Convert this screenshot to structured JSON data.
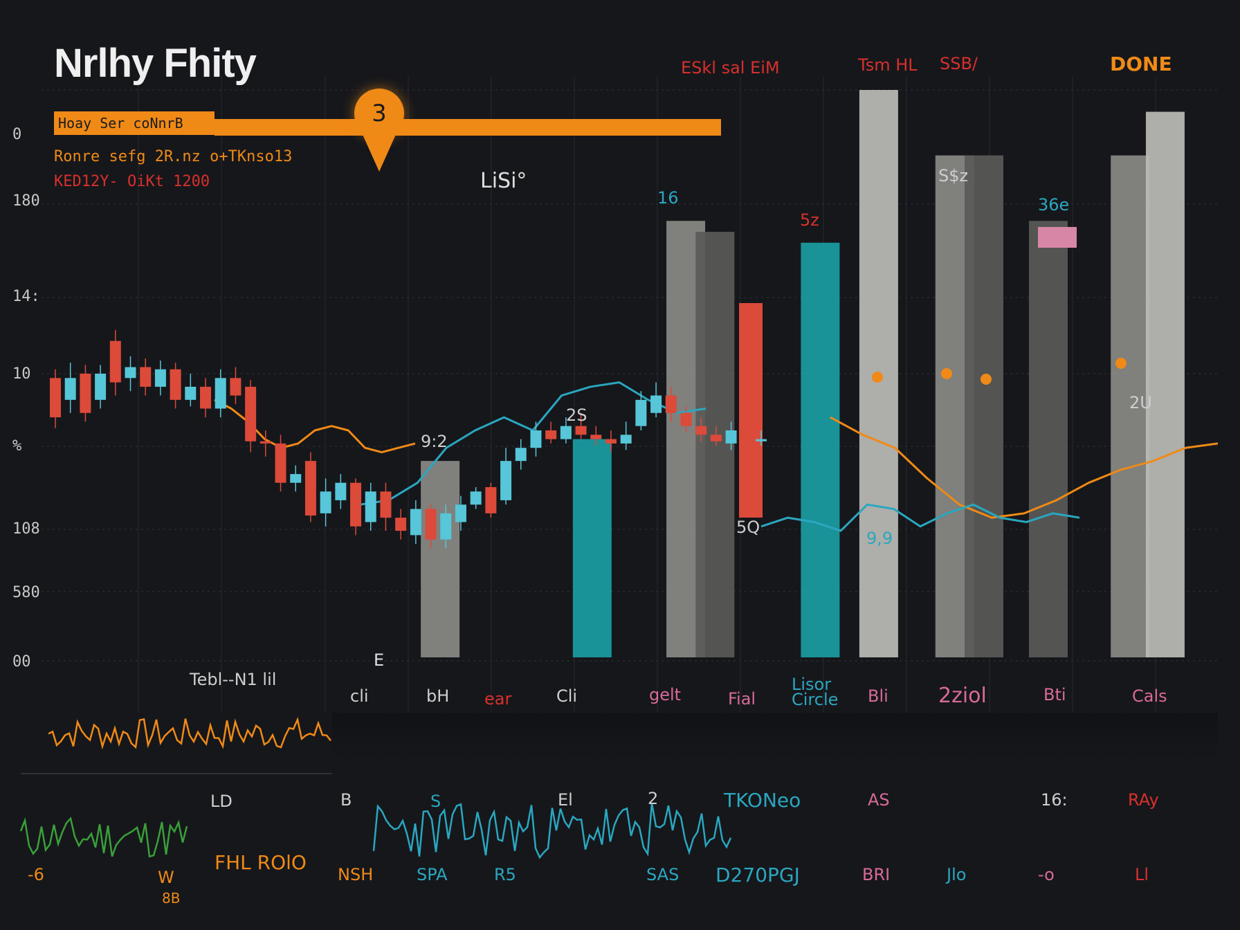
{
  "title": "Nrlhy Fhity",
  "banner": {
    "label": "Hoay Ser coNnrB",
    "pin_number": "3"
  },
  "subtitles": [
    "Ronre sefg  2R.nz o+TKnso13",
    "KED12Y- OiKt  1200"
  ],
  "y_axis_labels": [
    "0",
    "180",
    "14:",
    "10",
    "%",
    "108",
    "580",
    "00"
  ],
  "x_axis_labels": [
    "Tebl--N1 lil",
    "cli",
    "bH",
    "ear",
    "Cli",
    "gelt",
    "Fial",
    "Lisor\nCircle",
    "Bli",
    "2ziol",
    "Bti",
    "Cals"
  ],
  "annotations": [
    {
      "text": "LiSi°",
      "color": "#e0e0e0"
    },
    {
      "text": "ESkl sal  EiM",
      "color": "#d8302c"
    },
    {
      "text": "Tsm HL",
      "color": "#d8302c"
    },
    {
      "text": "SSB/",
      "color": "#d8302c"
    },
    {
      "text": "DONE",
      "color": "#f08a17"
    },
    {
      "text": "16",
      "color": "#2aa7c0"
    },
    {
      "text": "S$z",
      "color": "#cfcfcf"
    },
    {
      "text": "36e",
      "color": "#2aa7c0"
    },
    {
      "text": "5z",
      "color": "#d8302c"
    },
    {
      "text": "9:2",
      "color": "#cfcfcf"
    },
    {
      "text": "2S",
      "color": "#cfcfcf"
    },
    {
      "text": "5Q",
      "color": "#cfcfcf"
    },
    {
      "text": "9,9",
      "color": "#2aa7c0"
    },
    {
      "text": "2U",
      "color": "#cfcfcf"
    },
    {
      "text": "E",
      "color": "#e0e0e0"
    }
  ],
  "lower_labels": [
    "LD",
    "B",
    "S",
    "El",
    "2",
    "TKONeo",
    "AS",
    "16:",
    "RAy"
  ],
  "footer_labels": [
    {
      "text": "-6",
      "color": "#f08a17"
    },
    {
      "text": "W",
      "color": "#f08a17"
    },
    {
      "text": "8B",
      "color": "#f08a17"
    },
    {
      "text": "FHL  ROlO",
      "color": "#f08a17"
    },
    {
      "text": "NSH",
      "color": "#f08a17"
    },
    {
      "text": "SPA",
      "color": "#2aa7c0"
    },
    {
      "text": "R5",
      "color": "#2aa7c0"
    },
    {
      "text": "SAS",
      "color": "#2aa7c0"
    },
    {
      "text": "D270PGJ",
      "color": "#2aa7c0"
    },
    {
      "text": "BRI",
      "color": "#d86a9a"
    },
    {
      "text": "Jlo",
      "color": "#2aa7c0"
    },
    {
      "text": "-o",
      "color": "#d86a9a"
    },
    {
      "text": "Ll",
      "color": "#d8302c"
    }
  ],
  "colors": {
    "background": "#16171b",
    "up": "#56c6d8",
    "down": "#dc4a3a",
    "teal_bar": "#1a9ea3",
    "gray_bar": "#8a8a86",
    "light_bar": "#bcbcb6",
    "orange": "#f08a17",
    "cyan_line": "#2aa7c0",
    "green_line": "#3aa03a"
  },
  "chart_data": {
    "type": "bar",
    "title": "",
    "candles": [
      {
        "o": 128,
        "c": 110,
        "h": 132,
        "l": 105
      },
      {
        "o": 118,
        "c": 128,
        "h": 135,
        "l": 112
      },
      {
        "o": 130,
        "c": 112,
        "h": 134,
        "l": 108
      },
      {
        "o": 118,
        "c": 130,
        "h": 134,
        "l": 114
      },
      {
        "o": 145,
        "c": 126,
        "h": 150,
        "l": 120
      },
      {
        "o": 128,
        "c": 133,
        "h": 138,
        "l": 122
      },
      {
        "o": 133,
        "c": 124,
        "h": 137,
        "l": 120
      },
      {
        "o": 124,
        "c": 132,
        "h": 136,
        "l": 120
      },
      {
        "o": 132,
        "c": 118,
        "h": 135,
        "l": 114
      },
      {
        "o": 118,
        "c": 124,
        "h": 130,
        "l": 115
      },
      {
        "o": 124,
        "c": 114,
        "h": 128,
        "l": 110
      },
      {
        "o": 114,
        "c": 128,
        "h": 132,
        "l": 110
      },
      {
        "o": 128,
        "c": 120,
        "h": 133,
        "l": 116
      },
      {
        "o": 124,
        "c": 99,
        "h": 127,
        "l": 94
      },
      {
        "o": 99,
        "c": 98,
        "h": 104,
        "l": 92
      },
      {
        "o": 98,
        "c": 80,
        "h": 102,
        "l": 76
      },
      {
        "o": 80,
        "c": 84,
        "h": 88,
        "l": 76
      },
      {
        "o": 90,
        "c": 65,
        "h": 94,
        "l": 62
      },
      {
        "o": 66,
        "c": 76,
        "h": 82,
        "l": 60
      },
      {
        "o": 72,
        "c": 80,
        "h": 84,
        "l": 68
      },
      {
        "o": 80,
        "c": 60,
        "h": 82,
        "l": 56
      },
      {
        "o": 62,
        "c": 76,
        "h": 80,
        "l": 58
      },
      {
        "o": 76,
        "c": 64,
        "h": 80,
        "l": 58
      },
      {
        "o": 64,
        "c": 58,
        "h": 68,
        "l": 54
      },
      {
        "o": 56,
        "c": 68,
        "h": 72,
        "l": 52
      },
      {
        "o": 68,
        "c": 54,
        "h": 70,
        "l": 50
      },
      {
        "o": 54,
        "c": 66,
        "h": 70,
        "l": 50
      },
      {
        "o": 62,
        "c": 70,
        "h": 74,
        "l": 58
      },
      {
        "o": 70,
        "c": 76,
        "h": 78,
        "l": 68
      },
      {
        "o": 78,
        "c": 66,
        "h": 80,
        "l": 64
      },
      {
        "o": 72,
        "c": 90,
        "h": 96,
        "l": 70
      },
      {
        "o": 90,
        "c": 96,
        "h": 100,
        "l": 86
      },
      {
        "o": 96,
        "c": 104,
        "h": 108,
        "l": 92
      },
      {
        "o": 104,
        "c": 100,
        "h": 108,
        "l": 98
      },
      {
        "o": 100,
        "c": 106,
        "h": 110,
        "l": 98
      },
      {
        "o": 106,
        "c": 102,
        "h": 112,
        "l": 100
      },
      {
        "o": 102,
        "c": 100,
        "h": 106,
        "l": 97
      },
      {
        "o": 100,
        "c": 98,
        "h": 104,
        "l": 94
      },
      {
        "o": 98,
        "c": 102,
        "h": 108,
        "l": 95
      },
      {
        "o": 106,
        "c": 118,
        "h": 122,
        "l": 104
      },
      {
        "o": 112,
        "c": 120,
        "h": 126,
        "l": 110
      },
      {
        "o": 120,
        "c": 112,
        "h": 124,
        "l": 108
      },
      {
        "o": 112,
        "c": 106,
        "h": 115,
        "l": 103
      },
      {
        "o": 106,
        "c": 102,
        "h": 110,
        "l": 99
      },
      {
        "o": 102,
        "c": 99,
        "h": 106,
        "l": 97
      },
      {
        "o": 98,
        "c": 104,
        "h": 108,
        "l": 95
      },
      {
        "o": 104,
        "c": 99,
        "h": 108,
        "l": 97
      },
      {
        "o": 99,
        "c": 100,
        "h": 104,
        "l": 97
      }
    ],
    "volume_bars": [
      {
        "x": 0.335,
        "value": 90,
        "style": "gray"
      },
      {
        "x": 0.465,
        "value": 100,
        "style": "teal"
      },
      {
        "x": 0.545,
        "value": 200,
        "style": "gray"
      },
      {
        "x": 0.57,
        "value": 195,
        "style": "dark"
      },
      {
        "x": 0.66,
        "value": 190,
        "style": "teal"
      },
      {
        "x": 0.71,
        "value": 260,
        "style": "light"
      },
      {
        "x": 0.775,
        "value": 230,
        "style": "gray"
      },
      {
        "x": 0.8,
        "value": 230,
        "style": "dark"
      },
      {
        "x": 0.855,
        "value": 200,
        "style": "dark"
      },
      {
        "x": 0.925,
        "value": 230,
        "style": "gray"
      },
      {
        "x": 0.955,
        "value": 250,
        "style": "light"
      }
    ],
    "series": [
      {
        "values": [
          118,
          114,
          108,
          100,
          96,
          98,
          104,
          106,
          104,
          96,
          94,
          96,
          98
        ]
      },
      {
        "values": [
          70,
          72,
          80,
          96,
          104,
          110,
          104,
          120,
          124,
          126,
          118,
          112,
          114
        ]
      },
      {
        "values": [
          110,
          102,
          96,
          82,
          70,
          64,
          66,
          72,
          80,
          86,
          90,
          96,
          98
        ]
      },
      {
        "values": [
          60,
          64,
          62,
          58,
          70,
          68,
          60,
          66,
          70,
          64,
          62,
          66,
          64
        ]
      }
    ],
    "ylim": [
      0,
      260
    ]
  }
}
